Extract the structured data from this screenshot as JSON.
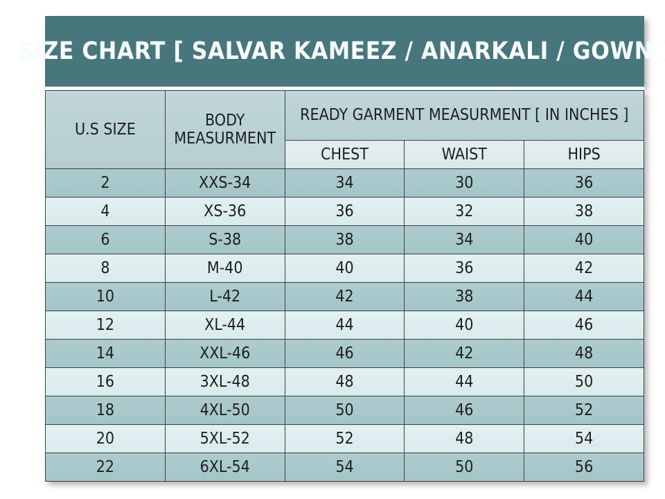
{
  "title": "SIZE CHART [ SALVAR KAMEEZ / ANARKALI / GOWN ]",
  "headers": {
    "us_size": "U.S SIZE",
    "body_measurement": "BODY MEASURMENT",
    "ready_garment": "READY GARMENT MEASURMENT [ IN INCHES ]",
    "chest": "CHEST",
    "waist": "WAIST",
    "hips": "HIPS"
  },
  "colors": {
    "band": "#48767d",
    "header": "#b5ced2",
    "headerTop": "#c0d6d9",
    "subheader": "#dae8ea",
    "rowDark": "#a3c5c8",
    "rowLight": "#d9ebec",
    "border": "#3f3f3f",
    "text": "#1e1e1e"
  },
  "chart_data": {
    "type": "table",
    "title": "SIZE CHART [ SALVAR KAMEEZ / ANARKALI / GOWN ]",
    "columns": [
      "U.S SIZE",
      "BODY MEASURMENT",
      "CHEST",
      "WAIST",
      "HIPS"
    ],
    "column_group": {
      "label": "READY GARMENT MEASURMENT [ IN INCHES ]",
      "spans": [
        "CHEST",
        "WAIST",
        "HIPS"
      ]
    },
    "rows": [
      [
        "2",
        "XXS-34",
        "34",
        "30",
        "36"
      ],
      [
        "4",
        "XS-36",
        "36",
        "32",
        "38"
      ],
      [
        "6",
        "S-38",
        "38",
        "34",
        "40"
      ],
      [
        "8",
        "M-40",
        "40",
        "36",
        "42"
      ],
      [
        "10",
        "L-42",
        "42",
        "38",
        "44"
      ],
      [
        "12",
        "XL-44",
        "44",
        "40",
        "46"
      ],
      [
        "14",
        "XXL-46",
        "46",
        "42",
        "48"
      ],
      [
        "16",
        "3XL-48",
        "48",
        "44",
        "50"
      ],
      [
        "18",
        "4XL-50",
        "50",
        "46",
        "52"
      ],
      [
        "20",
        "5XL-52",
        "52",
        "48",
        "54"
      ],
      [
        "22",
        "6XL-54",
        "54",
        "50",
        "56"
      ]
    ]
  }
}
